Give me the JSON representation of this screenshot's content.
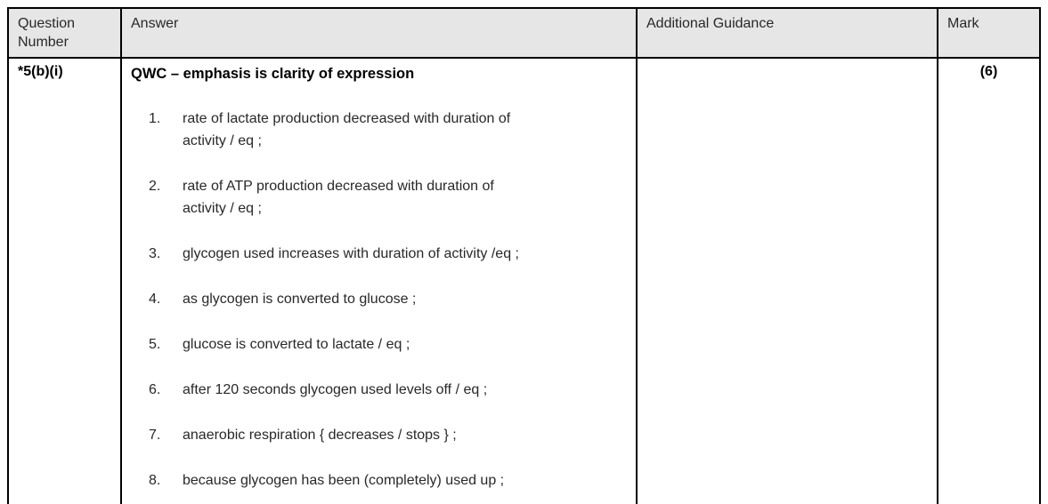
{
  "colors": {
    "header_bg": "#e6e6e6",
    "border": "#000000",
    "text": "#282828"
  },
  "table": {
    "header": {
      "columns": [
        "Question Number",
        "Answer",
        "Additional Guidance",
        "Mark"
      ]
    },
    "row": {
      "question_number": "*5(b)(i)",
      "answer": {
        "heading": "QWC – emphasis is clarity of expression",
        "points": [
          "rate of lactate production decreased with duration of activity / eq ;",
          "rate of ATP production decreased with duration of activity / eq ;",
          "glycogen used increases with duration of activity /eq ;",
          "as glycogen is converted to glucose ;",
          "glucose is converted to lactate / eq ;",
          "after 120 seconds glycogen used levels off / eq ;",
          "anaerobic respiration { decreases / stops } ;",
          "because glycogen has been (completely) used up ;"
        ]
      },
      "additional_guidance": "",
      "mark": "(6)"
    }
  }
}
